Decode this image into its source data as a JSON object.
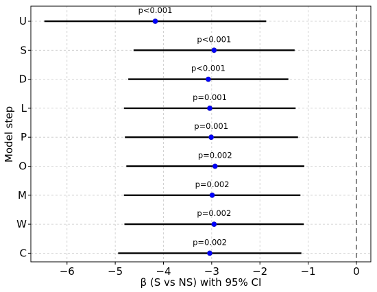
{
  "chart_data": {
    "type": "forest",
    "xlabel": "β (S vs NS) with 95% CI",
    "ylabel": "Model step",
    "xlim": [
      -6.75,
      0.3
    ],
    "x_ticks": [
      -6,
      -5,
      -4,
      -3,
      -2,
      -1,
      0
    ],
    "x_tick_labels": [
      "−6",
      "−5",
      "−4",
      "−3",
      "−2",
      "−1",
      "0"
    ],
    "reference_line": 0,
    "grid": true,
    "rows": [
      {
        "label": "U",
        "estimate": -4.17,
        "lower": -6.47,
        "upper": -1.87,
        "p": "p<0.001"
      },
      {
        "label": "S",
        "estimate": -2.95,
        "lower": -4.62,
        "upper": -1.28,
        "p": "p<0.001"
      },
      {
        "label": "D",
        "estimate": -3.07,
        "lower": -4.73,
        "upper": -1.41,
        "p": "p<0.001"
      },
      {
        "label": "L",
        "estimate": -3.04,
        "lower": -4.82,
        "upper": -1.26,
        "p": "p=0.001"
      },
      {
        "label": "P",
        "estimate": -3.01,
        "lower": -4.8,
        "upper": -1.21,
        "p": "p=0.001"
      },
      {
        "label": "O",
        "estimate": -2.93,
        "lower": -4.77,
        "upper": -1.08,
        "p": "p=0.002"
      },
      {
        "label": "M",
        "estimate": -2.99,
        "lower": -4.82,
        "upper": -1.16,
        "p": "p=0.002"
      },
      {
        "label": "W",
        "estimate": -2.95,
        "lower": -4.81,
        "upper": -1.09,
        "p": "p=0.002"
      },
      {
        "label": "C",
        "estimate": -3.04,
        "lower": -4.94,
        "upper": -1.14,
        "p": "p=0.002"
      }
    ]
  }
}
